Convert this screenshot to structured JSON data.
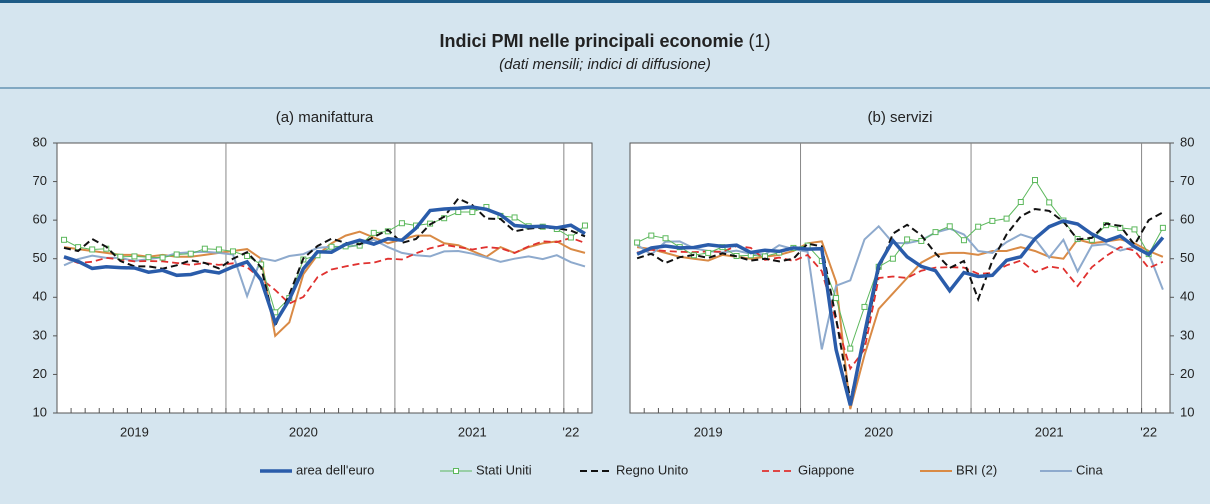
{
  "title": "Indici PMI nelle principali economie",
  "title_note": "(1)",
  "subtitle": "(dati mensili; indici di diffusione)",
  "chart_data": [
    {
      "type": "line",
      "title": "(a) manifattura",
      "yaxis_side": "left",
      "grid": false,
      "categories": [
        null,
        null,
        null,
        null,
        null,
        "2019",
        null,
        null,
        null,
        null,
        null,
        null,
        null,
        null,
        null,
        null,
        null,
        "2020",
        null,
        null,
        null,
        null,
        null,
        null,
        null,
        null,
        null,
        null,
        null,
        "2021",
        null,
        null,
        null,
        null,
        null,
        null,
        "'22",
        null
      ],
      "ylim": [
        10,
        80
      ],
      "yticks": [
        10,
        20,
        30,
        40,
        50,
        60,
        70,
        80
      ],
      "series": [
        {
          "name": "area dell'euro",
          "color": "#2a5caa",
          "line_width": 3.5,
          "dash": "solid",
          "marker": "none",
          "values": [
            50.5,
            49.3,
            47.5,
            47.9,
            47.7,
            47.6,
            46.5,
            47.0,
            45.7,
            45.9,
            46.9,
            46.3,
            47.9,
            49.2,
            44.5,
            33.4,
            39.4,
            47.4,
            51.8,
            51.7,
            53.7,
            54.8,
            53.8,
            55.2,
            54.8,
            57.9,
            62.5,
            62.9,
            63.1,
            63.4,
            62.8,
            61.4,
            58.6,
            58.3,
            58.4,
            58.0,
            58.7,
            56.5
          ]
        },
        {
          "name": "Stati Uniti",
          "color": "#5cb85c",
          "line_width": 1,
          "dash": "solid",
          "marker": "square",
          "values": [
            54.9,
            53.0,
            52.4,
            52.6,
            50.5,
            50.6,
            50.4,
            50.3,
            51.1,
            51.3,
            52.6,
            52.4,
            51.9,
            50.7,
            48.5,
            36.1,
            39.8,
            49.8,
            50.9,
            53.1,
            53.2,
            53.4,
            56.7,
            57.1,
            59.2,
            58.6,
            59.1,
            60.5,
            62.1,
            62.1,
            63.4,
            61.1,
            60.7,
            58.4,
            58.3,
            57.7,
            55.5,
            58.6
          ]
        },
        {
          "name": "Regno Unito",
          "color": "#111111",
          "line_width": 2,
          "dash": "dashed",
          "marker": "none",
          "values": [
            52.8,
            52.0,
            55.1,
            53.1,
            49.4,
            48.0,
            48.0,
            47.4,
            48.3,
            49.6,
            48.9,
            47.5,
            50.0,
            51.7,
            47.8,
            32.6,
            40.7,
            50.1,
            53.3,
            55.2,
            54.1,
            53.7,
            55.6,
            57.5,
            54.1,
            55.1,
            58.9,
            60.9,
            65.6,
            63.9,
            60.4,
            60.3,
            57.1,
            57.8,
            58.1,
            57.9,
            57.3,
            55.8
          ]
        },
        {
          "name": "Giappone",
          "color": "#e0312f",
          "line_width": 1.8,
          "dash": "dashed",
          "marker": "none",
          "values": [
            50.3,
            48.9,
            49.2,
            50.2,
            49.8,
            49.3,
            49.4,
            49.3,
            48.9,
            48.4,
            48.9,
            48.4,
            48.8,
            47.8,
            44.8,
            41.9,
            38.4,
            40.1,
            45.2,
            47.2,
            48.0,
            48.7,
            49.0,
            50.0,
            49.8,
            51.4,
            52.7,
            53.6,
            53.0,
            52.4,
            53.0,
            52.7,
            51.5,
            53.2,
            54.5,
            54.3,
            55.4,
            54.1
          ]
        },
        {
          "name": "BRI (2)",
          "color": "#d98a45",
          "line_width": 2,
          "dash": "solid",
          "marker": "none",
          "values": [
            53,
            52.5,
            52,
            51.5,
            51,
            51,
            50.5,
            51,
            50.5,
            50.5,
            51,
            51.5,
            52,
            52.5,
            50,
            30,
            33.5,
            46,
            51,
            54,
            56,
            57,
            55.5,
            54,
            55,
            56,
            56,
            54,
            53.5,
            52,
            50.5,
            53,
            51.5,
            53,
            54,
            54.5,
            52.5,
            51.5
          ]
        },
        {
          "name": "Cina",
          "color": "#8eaacd",
          "line_width": 2,
          "dash": "solid",
          "marker": "none",
          "values": [
            48.3,
            49.9,
            50.8,
            50.2,
            50.2,
            49.4,
            49.9,
            50.4,
            51.4,
            51.7,
            51.8,
            51.5,
            51.1,
            40.3,
            50.1,
            49.4,
            50.7,
            51.2,
            52.8,
            53.1,
            53.0,
            53.6,
            54.9,
            53.0,
            51.5,
            50.9,
            50.6,
            51.9,
            52.0,
            51.3,
            50.3,
            49.2,
            50.0,
            50.6,
            49.9,
            50.9,
            49.1,
            48.0
          ]
        }
      ]
    },
    {
      "type": "line",
      "title": "(b) servizi",
      "yaxis_side": "right",
      "grid": false,
      "categories": [
        null,
        null,
        null,
        null,
        null,
        "2019",
        null,
        null,
        null,
        null,
        null,
        null,
        null,
        null,
        null,
        null,
        null,
        "2020",
        null,
        null,
        null,
        null,
        null,
        null,
        null,
        null,
        null,
        null,
        null,
        "2021",
        null,
        null,
        null,
        null,
        null,
        null,
        "'22",
        null
      ],
      "ylim": [
        10,
        80
      ],
      "yticks": [
        10,
        20,
        30,
        40,
        50,
        60,
        70,
        80
      ],
      "series": [
        {
          "values": [
            51.2,
            52.8,
            53.3,
            52.8,
            52.9,
            53.6,
            53.2,
            53.5,
            51.6,
            52.2,
            51.9,
            52.8,
            52.5,
            52.6,
            26.4,
            12.0,
            30.5,
            48.3,
            54.7,
            50.5,
            48.0,
            46.9,
            41.7,
            46.4,
            45.4,
            45.7,
            49.6,
            50.5,
            55.2,
            58.3,
            59.8,
            59.0,
            56.4,
            54.6,
            55.9,
            53.1,
            51.1,
            55.5
          ]
        },
        {
          "values": [
            54.2,
            56.0,
            55.3,
            53.0,
            50.9,
            51.5,
            53.0,
            50.7,
            50.9,
            50.6,
            51.6,
            52.8,
            53.4,
            49.4,
            39.8,
            26.7,
            37.5,
            47.9,
            50.0,
            55.0,
            54.6,
            56.9,
            58.4,
            54.8,
            58.3,
            59.8,
            60.4,
            64.7,
            70.4,
            64.6,
            59.9,
            55.1,
            54.9,
            58.7,
            58.0,
            57.6,
            51.2,
            58.0
          ]
        },
        {
          "values": [
            50.1,
            51.3,
            48.9,
            50.4,
            51.0,
            50.2,
            51.4,
            50.6,
            49.5,
            50.0,
            49.3,
            50.0,
            53.9,
            53.2,
            34.5,
            13.4,
            29.0,
            47.1,
            56.5,
            58.8,
            56.1,
            51.4,
            47.6,
            49.4,
            39.5,
            49.5,
            56.3,
            61.0,
            62.9,
            62.4,
            59.6,
            55.0,
            55.4,
            59.1,
            58.5,
            53.6,
            60.0,
            62.0
          ]
        },
        {
          "values": [
            51.6,
            52.3,
            52.0,
            51.8,
            51.7,
            51.9,
            51.8,
            53.3,
            52.8,
            49.7,
            50.3,
            49.4,
            51.0,
            46.8,
            33.8,
            21.5,
            26.5,
            45.0,
            45.4,
            45.0,
            46.9,
            47.7,
            47.8,
            47.7,
            46.1,
            46.3,
            48.3,
            49.5,
            46.5,
            48.0,
            47.4,
            42.9,
            47.8,
            50.7,
            53.0,
            52.1,
            47.6,
            49.2
          ]
        },
        {
          "values": [
            53,
            52.5,
            51.5,
            50.5,
            50,
            49.5,
            51,
            50.5,
            50,
            50.5,
            51,
            52,
            54,
            54.5,
            44,
            11,
            25,
            37,
            41,
            45,
            49,
            51,
            51.5,
            51.5,
            51,
            52,
            52,
            53,
            52,
            50.5,
            50,
            55,
            54,
            54.5,
            55,
            54,
            52,
            50.5
          ]
        },
        {
          "values": [
            53.6,
            51.1,
            54.4,
            54.5,
            52.7,
            52.0,
            51.6,
            52.1,
            51.3,
            51.1,
            53.5,
            52.5,
            51.8,
            26.5,
            43.0,
            44.4,
            55.0,
            58.4,
            54.1,
            54.0,
            54.8,
            56.8,
            57.8,
            56.3,
            52.0,
            51.5,
            54.3,
            56.3,
            55.1,
            50.3,
            54.9,
            46.7,
            53.4,
            53.8,
            52.1,
            53.1,
            51.4,
            42.0
          ]
        }
      ]
    }
  ]
}
